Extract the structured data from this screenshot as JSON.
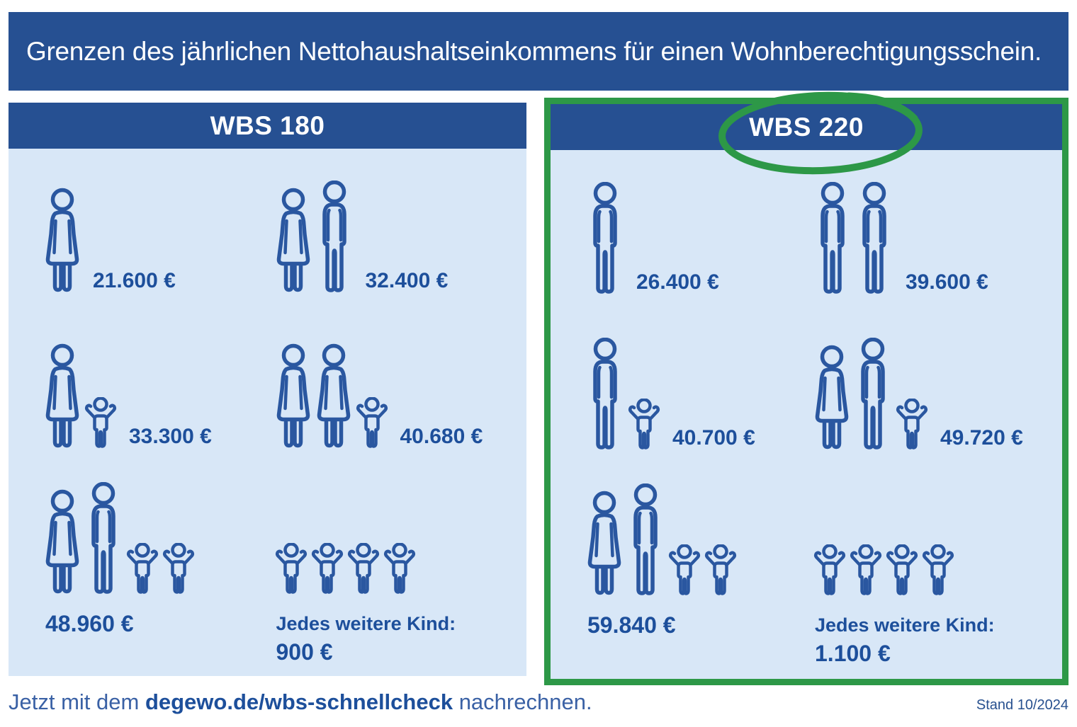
{
  "title": "Grenzen des jährlichen Nettohaushaltseinkommens für einen Wohnberechtigungsschein.",
  "panels": [
    {
      "header": "WBS 180",
      "highlighted": false,
      "cells": [
        {
          "icons": [
            "woman"
          ],
          "amount": "21.600 €"
        },
        {
          "icons": [
            "woman",
            "man"
          ],
          "amount": "32.400 €"
        },
        {
          "icons": [
            "woman",
            "child"
          ],
          "amount": "33.300 €"
        },
        {
          "icons": [
            "woman",
            "woman",
            "child"
          ],
          "amount": "40.680 €"
        },
        {
          "icons": [
            "woman",
            "man",
            "child",
            "child"
          ],
          "amount": "48.960 €"
        },
        {
          "icons": [
            "child",
            "child",
            "child",
            "child"
          ],
          "label": "Jedes weitere Kind:",
          "amount": "900 €"
        }
      ]
    },
    {
      "header": "WBS 220",
      "highlighted": true,
      "cells": [
        {
          "icons": [
            "man"
          ],
          "amount": "26.400 €"
        },
        {
          "icons": [
            "man",
            "man"
          ],
          "amount": "39.600 €"
        },
        {
          "icons": [
            "man",
            "child"
          ],
          "amount": "40.700 €"
        },
        {
          "icons": [
            "woman",
            "man",
            "child"
          ],
          "amount": "49.720 €"
        },
        {
          "icons": [
            "woman",
            "man",
            "child",
            "child"
          ],
          "amount": "59.840 €"
        },
        {
          "icons": [
            "child",
            "child",
            "child",
            "child"
          ],
          "label": "Jedes weitere Kind:",
          "amount": "1.100 €"
        }
      ]
    }
  ],
  "footer": {
    "prefix": "Jetzt mit dem ",
    "link": "degewo.de/wbs-schnellcheck",
    "suffix": " nachrechnen.",
    "stand": "Stand 10/2024"
  },
  "colors": {
    "banner_blue": "#265092",
    "panel_light_blue": "#d8e7f7",
    "icon_blue": "#2a57a0",
    "text_blue": "#1d4f9b",
    "highlight_green": "#2d9847"
  }
}
